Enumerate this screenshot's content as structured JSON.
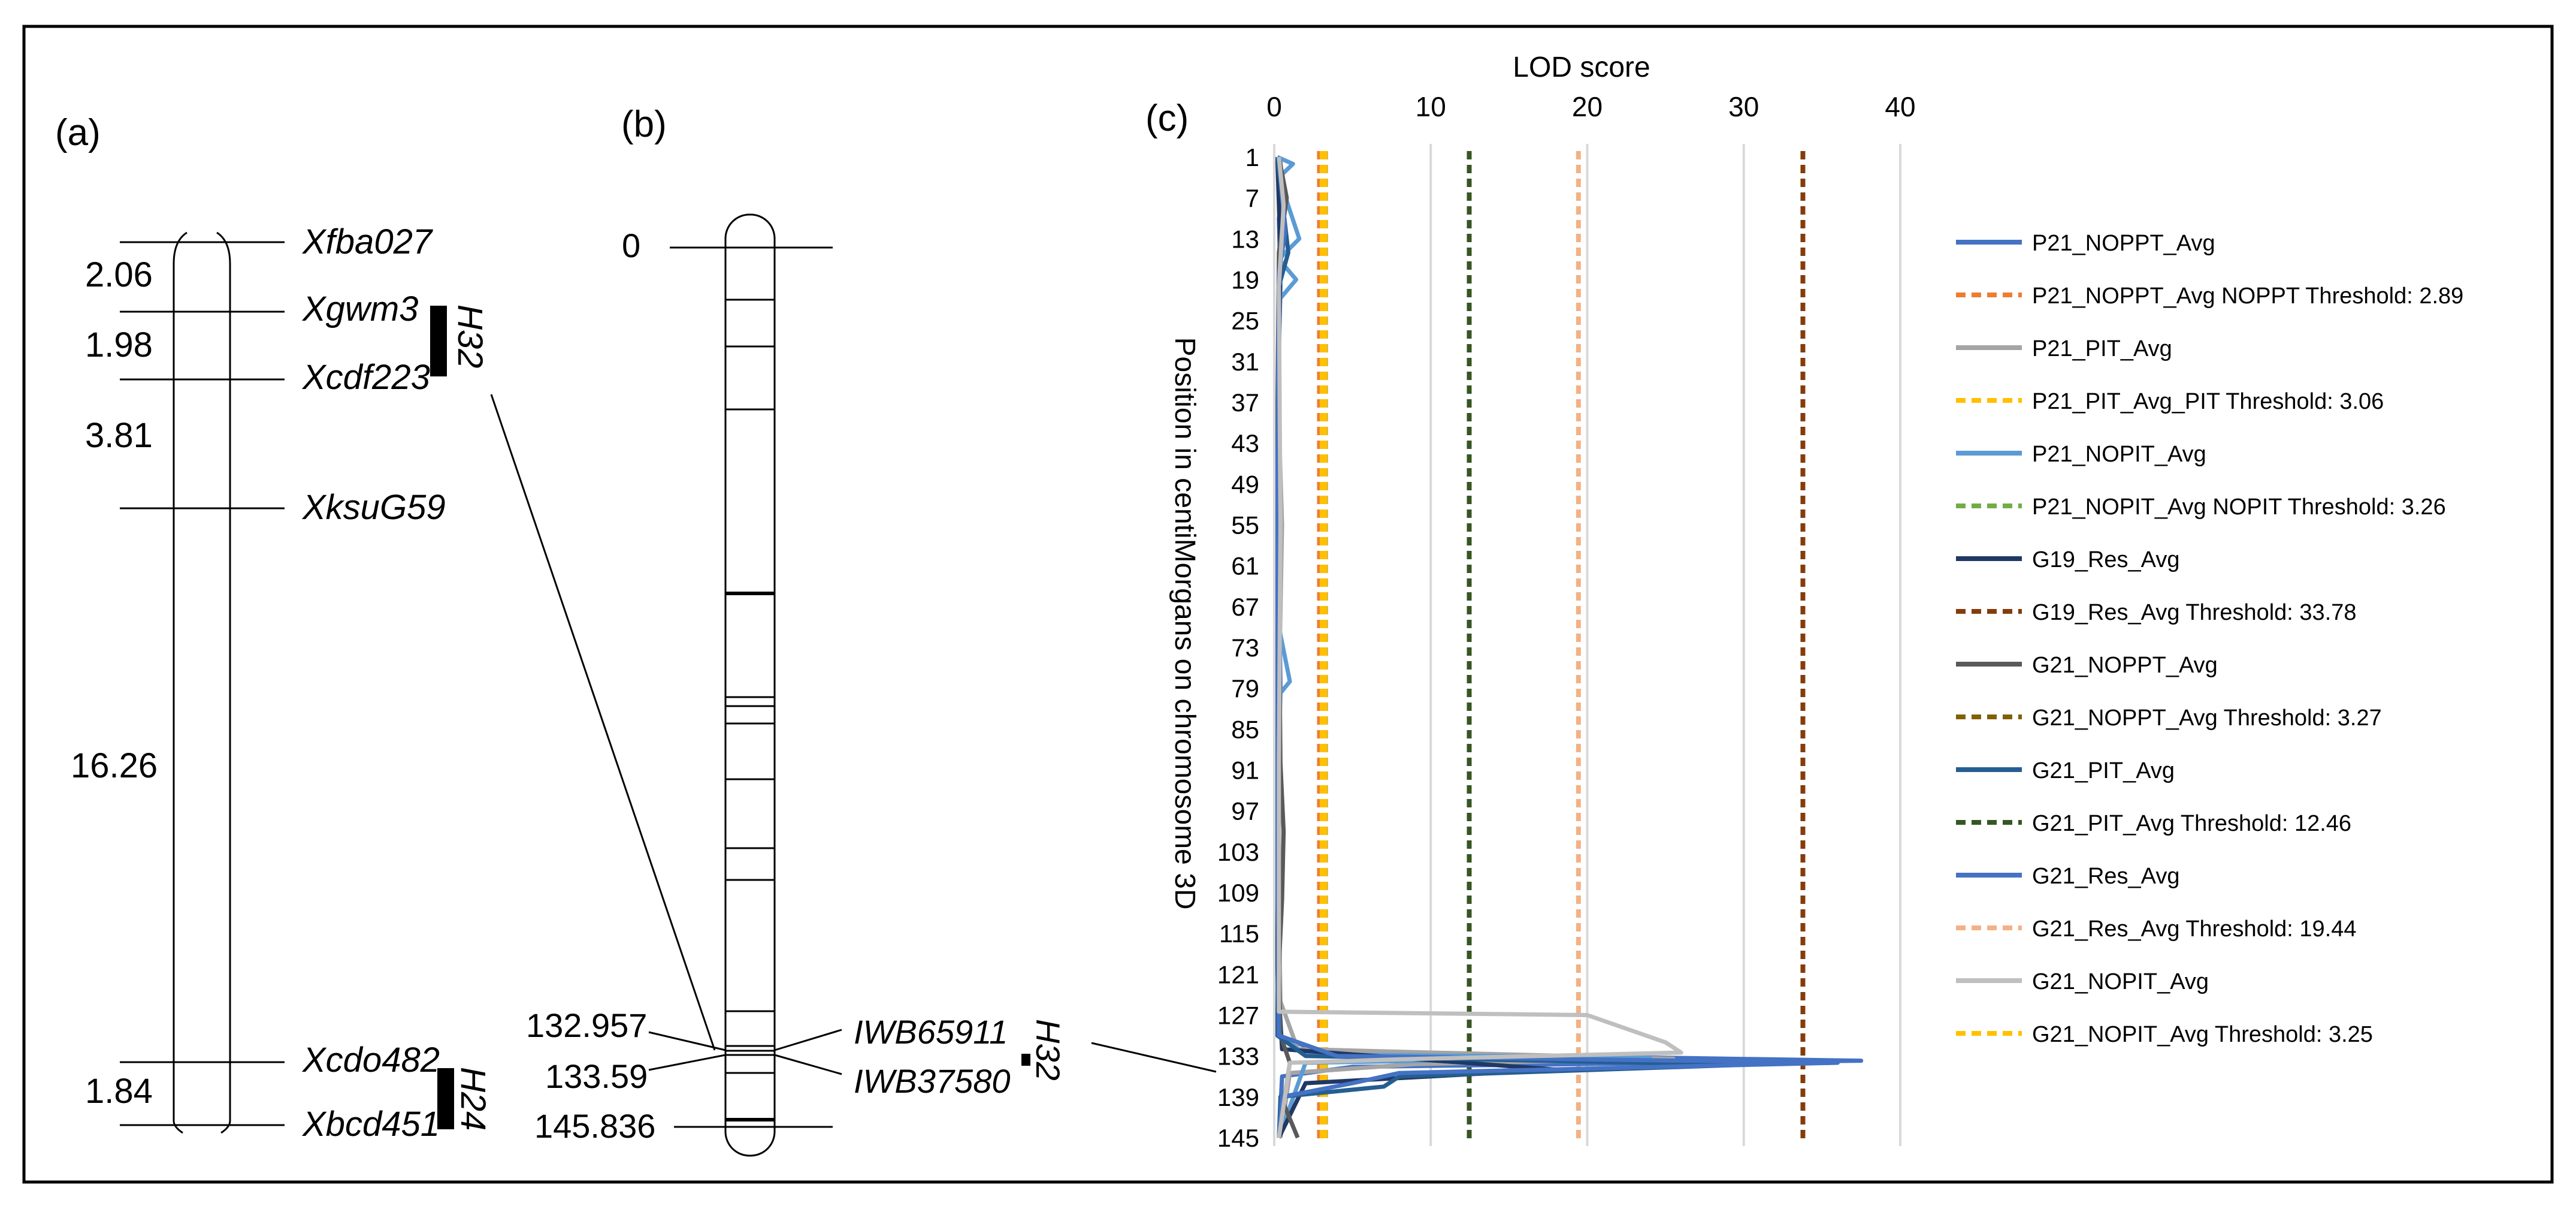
{
  "panel_a": {
    "label": "(a)",
    "markers": [
      "Xfba027",
      "Xgwm3",
      "Xcdf223",
      "XksuG59",
      "Xcdo482",
      "Xbcd451"
    ],
    "distances": [
      "2.06",
      "1.98",
      "3.81",
      "16.26",
      "1.84"
    ],
    "bars": [
      "H32",
      "H24"
    ]
  },
  "panel_b": {
    "label": "(b)",
    "positions": [
      "0",
      "132.957",
      "133.59",
      "145.836"
    ],
    "markers": [
      "IWB65911",
      "IWB37580"
    ],
    "bar": "H32"
  },
  "chart_data": {
    "type": "line",
    "panel_label": "(c)",
    "title": "LOD score",
    "xlabel": "LOD score",
    "ylabel": "Position in centiMorgans on chromosome 3D",
    "xlim": [
      0,
      40
    ],
    "xticks": [
      "0",
      "10",
      "20",
      "30",
      "40"
    ],
    "ylim": [
      1,
      145
    ],
    "yticks": [
      "1",
      "7",
      "13",
      "19",
      "25",
      "31",
      "37",
      "43",
      "49",
      "55",
      "61",
      "67",
      "73",
      "79",
      "85",
      "91",
      "97",
      "103",
      "109",
      "115",
      "121",
      "127",
      "133",
      "139",
      "145"
    ],
    "grid": "vertical",
    "legend_position": "right",
    "series": [
      {
        "name": "P21_NOPPT_Avg",
        "style": "solid",
        "color": "#4472c4",
        "points": [
          [
            0.3,
            1
          ],
          [
            0.6,
            5
          ],
          [
            0.3,
            10
          ],
          [
            0.4,
            20
          ],
          [
            0.2,
            40
          ],
          [
            0.3,
            60
          ],
          [
            0.4,
            79
          ],
          [
            0.2,
            100
          ],
          [
            0.2,
            120
          ],
          [
            0.3,
            130
          ],
          [
            3,
            132.5
          ],
          [
            37.5,
            133.7
          ],
          [
            5,
            134.6
          ],
          [
            0.5,
            136
          ],
          [
            0.3,
            145
          ]
        ]
      },
      {
        "name": "P21_NOPPT_Avg NOPPT Threshold: 2.89",
        "style": "dashed",
        "color": "#ed7d31",
        "threshold": 2.89
      },
      {
        "name": "P21_PIT_Avg",
        "style": "solid",
        "color": "#a5a5a5",
        "points": [
          [
            0.4,
            1
          ],
          [
            0.5,
            8
          ],
          [
            0.3,
            20
          ],
          [
            0.3,
            40
          ],
          [
            0.5,
            55
          ],
          [
            0.3,
            80
          ],
          [
            0.3,
            110
          ],
          [
            0.4,
            125
          ],
          [
            1.5,
            132
          ],
          [
            25.5,
            133.4
          ],
          [
            9,
            134.2
          ],
          [
            1,
            135.5
          ],
          [
            0.4,
            145
          ]
        ]
      },
      {
        "name": "P21_PIT_Avg_PIT Threshold: 3.06",
        "style": "dashed",
        "color": "#ffc000",
        "threshold": 3.06
      },
      {
        "name": "P21_NOPIT_Avg",
        "style": "solid",
        "color": "#5b9bd5",
        "points": [
          [
            0.2,
            1
          ],
          [
            1.2,
            2
          ],
          [
            0.3,
            4
          ],
          [
            1.6,
            13
          ],
          [
            0.3,
            16
          ],
          [
            1.4,
            19
          ],
          [
            0.3,
            22
          ],
          [
            0.2,
            50
          ],
          [
            0.3,
            70
          ],
          [
            1,
            78
          ],
          [
            0.3,
            80
          ],
          [
            0.2,
            100
          ],
          [
            0.3,
            130
          ],
          [
            2,
            132.8
          ],
          [
            24,
            133.2
          ],
          [
            2,
            134
          ],
          [
            0.3,
            145
          ]
        ]
      },
      {
        "name": "P21_NOPIT_Avg NOPIT Threshold: 3.26",
        "style": "dashed",
        "color": "#70ad47",
        "threshold": 3.26
      },
      {
        "name": "G19_Res_Avg",
        "style": "solid",
        "color": "#203864",
        "points": [
          [
            0.2,
            1
          ],
          [
            0.4,
            15
          ],
          [
            0.3,
            30
          ],
          [
            0.2,
            60
          ],
          [
            0.3,
            90
          ],
          [
            0.2,
            120
          ],
          [
            0.5,
            132
          ],
          [
            18,
            135
          ],
          [
            2,
            137
          ],
          [
            0.3,
            145
          ]
        ]
      },
      {
        "name": "G19_Res_Avg Threshold: 33.78",
        "style": "dashed",
        "color": "#843c0c",
        "threshold": 33.78
      },
      {
        "name": "G21_NOPPT_Avg",
        "style": "solid",
        "color": "#595959",
        "points": [
          [
            0.3,
            1
          ],
          [
            0.8,
            7
          ],
          [
            0.3,
            15
          ],
          [
            0.2,
            40
          ],
          [
            0.4,
            90
          ],
          [
            0.6,
            100
          ],
          [
            0.5,
            110
          ],
          [
            0.3,
            120
          ],
          [
            0.4,
            130
          ],
          [
            1,
            134
          ],
          [
            0.6,
            140
          ],
          [
            1.5,
            145
          ]
        ]
      },
      {
        "name": "G21_NOPPT_Avg Threshold: 3.27",
        "style": "dashed",
        "color": "#806000",
        "threshold": 3.27
      },
      {
        "name": "G21_PIT_Avg",
        "style": "solid",
        "color": "#255e91",
        "points": [
          [
            0.2,
            1
          ],
          [
            0.9,
            15
          ],
          [
            0.3,
            20
          ],
          [
            0.2,
            50
          ],
          [
            0.3,
            100
          ],
          [
            0.2,
            130
          ],
          [
            2,
            133
          ],
          [
            30,
            134.3
          ],
          [
            8,
            136
          ],
          [
            7,
            137.5
          ],
          [
            0.4,
            139
          ],
          [
            0.3,
            145
          ]
        ]
      },
      {
        "name": "G21_PIT_Avg Threshold: 12.46",
        "style": "dashed",
        "color": "#375623",
        "threshold": 12.46
      },
      {
        "name": "G21_Res_Avg",
        "style": "solid",
        "color": "#4472c4",
        "points": [
          [
            0.3,
            1
          ],
          [
            0.7,
            12
          ],
          [
            0.3,
            18
          ],
          [
            0.2,
            50
          ],
          [
            0.2,
            100
          ],
          [
            0.3,
            130
          ],
          [
            4,
            133
          ],
          [
            36,
            134
          ],
          [
            8,
            135.5
          ],
          [
            5,
            137
          ],
          [
            0.5,
            139
          ],
          [
            0.3,
            145
          ]
        ]
      },
      {
        "name": "G21_Res_Avg Threshold: 19.44",
        "style": "dashed",
        "color": "#f4b183",
        "threshold": 19.44
      },
      {
        "name": "G21_NOPIT_Avg",
        "style": "solid",
        "color": "#bfbfbf",
        "points": [
          [
            0.3,
            1
          ],
          [
            0.6,
            8
          ],
          [
            0.3,
            20
          ],
          [
            0.4,
            55
          ],
          [
            0.3,
            90
          ],
          [
            0.3,
            125
          ],
          [
            0.3,
            126.5
          ],
          [
            20,
            127
          ],
          [
            25,
            131
          ],
          [
            26,
            132.5
          ],
          [
            8,
            133.5
          ],
          [
            1,
            134
          ],
          [
            0.3,
            145
          ]
        ]
      },
      {
        "name": "G21_NOPIT_Avg Threshold: 3.25",
        "style": "dashed",
        "color": "#ffc000",
        "threshold": 3.25
      }
    ]
  }
}
